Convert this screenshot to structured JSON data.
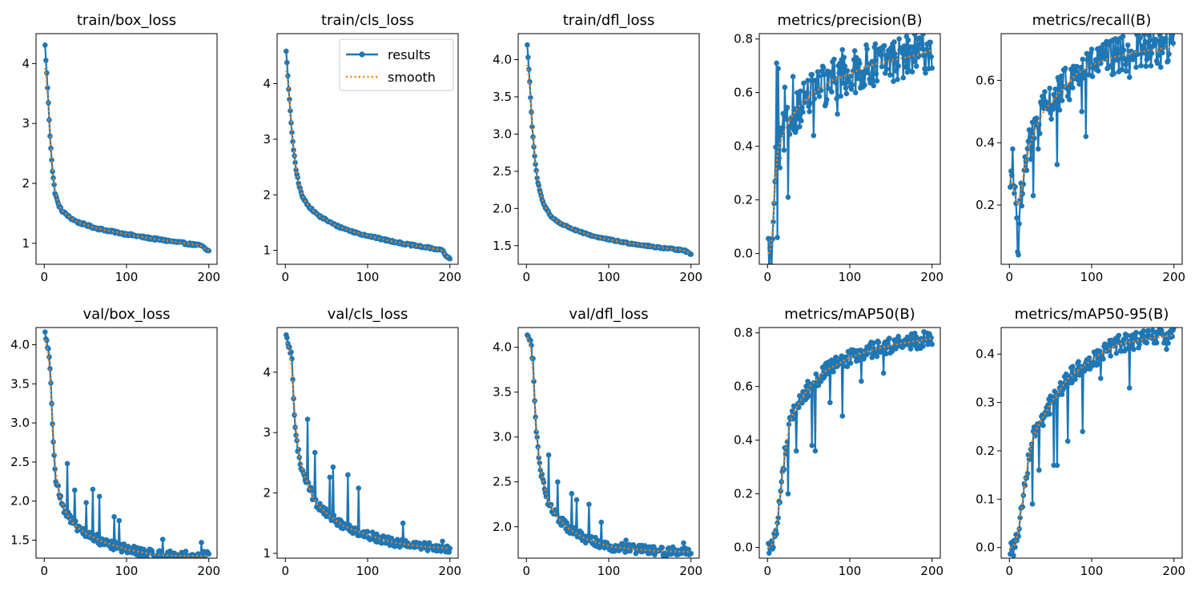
{
  "figure": {
    "colors": {
      "results": "#1f77b4",
      "smooth": "#ff7f0e",
      "axis": "#000000",
      "background": "#ffffff"
    }
  },
  "chart_data": [
    {
      "type": "line",
      "title": "train/box_loss",
      "xlim": [
        -10,
        210
      ],
      "ylim": [
        0.65,
        4.5
      ],
      "xticks": [
        {
          "v": 0,
          "label": "0"
        },
        {
          "v": 100,
          "label": "100"
        },
        {
          "v": 200,
          "label": "200"
        }
      ],
      "yticks": [
        {
          "v": 1,
          "label": "1"
        },
        {
          "v": 2,
          "label": "2"
        },
        {
          "v": 3,
          "label": "3"
        },
        {
          "v": 4,
          "label": "4"
        }
      ],
      "anchors": [
        [
          0,
          4.3
        ],
        [
          3,
          3.6
        ],
        [
          6,
          2.8
        ],
        [
          9,
          2.2
        ],
        [
          12,
          1.85
        ],
        [
          16,
          1.65
        ],
        [
          20,
          1.55
        ],
        [
          30,
          1.43
        ],
        [
          40,
          1.35
        ],
        [
          60,
          1.26
        ],
        [
          80,
          1.2
        ],
        [
          100,
          1.15
        ],
        [
          120,
          1.1
        ],
        [
          150,
          1.04
        ],
        [
          180,
          0.98
        ],
        [
          190,
          0.96
        ],
        [
          195,
          0.9
        ],
        [
          199,
          0.87
        ]
      ],
      "noise": 0.02,
      "spikes": [],
      "legend": null
    },
    {
      "type": "line",
      "title": "train/cls_loss",
      "xlim": [
        -10,
        210
      ],
      "ylim": [
        0.75,
        4.9
      ],
      "xticks": [
        {
          "v": 0,
          "label": "0"
        },
        {
          "v": 100,
          "label": "100"
        },
        {
          "v": 200,
          "label": "200"
        }
      ],
      "yticks": [
        {
          "v": 1,
          "label": "1"
        },
        {
          "v": 2,
          "label": "2"
        },
        {
          "v": 3,
          "label": "3"
        },
        {
          "v": 4,
          "label": "4"
        }
      ],
      "anchors": [
        [
          0,
          4.6
        ],
        [
          3,
          3.9
        ],
        [
          6,
          3.3
        ],
        [
          9,
          2.8
        ],
        [
          12,
          2.45
        ],
        [
          16,
          2.15
        ],
        [
          20,
          1.95
        ],
        [
          30,
          1.75
        ],
        [
          40,
          1.62
        ],
        [
          60,
          1.45
        ],
        [
          80,
          1.34
        ],
        [
          100,
          1.26
        ],
        [
          120,
          1.19
        ],
        [
          150,
          1.1
        ],
        [
          180,
          1.03
        ],
        [
          190,
          1.0
        ],
        [
          195,
          0.88
        ],
        [
          199,
          0.85
        ]
      ],
      "noise": 0.02,
      "spikes": [],
      "legend": {
        "position": "upper right",
        "entries": [
          {
            "label": "results",
            "style": "line-marker"
          },
          {
            "label": "smooth",
            "style": "dotted"
          }
        ]
      }
    },
    {
      "type": "line",
      "title": "train/dfl_loss",
      "xlim": [
        -10,
        210
      ],
      "ylim": [
        1.25,
        4.35
      ],
      "xticks": [
        {
          "v": 0,
          "label": "0"
        },
        {
          "v": 100,
          "label": "100"
        },
        {
          "v": 200,
          "label": "200"
        }
      ],
      "yticks": [
        {
          "v": 1.5,
          "label": "1.5"
        },
        {
          "v": 2.0,
          "label": "2.0"
        },
        {
          "v": 2.5,
          "label": "2.5"
        },
        {
          "v": 3.0,
          "label": "3.0"
        },
        {
          "v": 3.5,
          "label": "3.5"
        },
        {
          "v": 4.0,
          "label": "4.0"
        }
      ],
      "anchors": [
        [
          0,
          4.2
        ],
        [
          3,
          3.7
        ],
        [
          6,
          3.1
        ],
        [
          9,
          2.7
        ],
        [
          12,
          2.4
        ],
        [
          16,
          2.2
        ],
        [
          20,
          2.05
        ],
        [
          30,
          1.88
        ],
        [
          40,
          1.8
        ],
        [
          60,
          1.7
        ],
        [
          80,
          1.63
        ],
        [
          100,
          1.58
        ],
        [
          120,
          1.54
        ],
        [
          150,
          1.49
        ],
        [
          180,
          1.45
        ],
        [
          190,
          1.44
        ],
        [
          195,
          1.41
        ],
        [
          199,
          1.39
        ]
      ],
      "noise": 0.012,
      "spikes": [],
      "legend": null
    },
    {
      "type": "line",
      "title": "metrics/precision(B)",
      "xlim": [
        -10,
        210
      ],
      "ylim": [
        -0.04,
        0.82
      ],
      "xticks": [
        {
          "v": 0,
          "label": "0"
        },
        {
          "v": 100,
          "label": "100"
        },
        {
          "v": 200,
          "label": "200"
        }
      ],
      "yticks": [
        {
          "v": 0.0,
          "label": "0.0"
        },
        {
          "v": 0.2,
          "label": "0.2"
        },
        {
          "v": 0.4,
          "label": "0.4"
        },
        {
          "v": 0.6,
          "label": "0.6"
        },
        {
          "v": 0.8,
          "label": "0.8"
        }
      ],
      "anchors": [
        [
          0,
          0.0
        ],
        [
          5,
          0.0
        ],
        [
          8,
          0.3
        ],
        [
          10,
          0.38
        ],
        [
          15,
          0.42
        ],
        [
          20,
          0.46
        ],
        [
          30,
          0.52
        ],
        [
          40,
          0.56
        ],
        [
          60,
          0.61
        ],
        [
          80,
          0.65
        ],
        [
          100,
          0.67
        ],
        [
          120,
          0.7
        ],
        [
          150,
          0.72
        ],
        [
          180,
          0.74
        ],
        [
          200,
          0.76
        ]
      ],
      "noise": 0.08,
      "spikes": [
        [
          10,
          0.71
        ],
        [
          11,
          0.06
        ],
        [
          12,
          0.69
        ],
        [
          14,
          0.32
        ],
        [
          20,
          0.62
        ],
        [
          24,
          0.21
        ],
        [
          30,
          0.66
        ],
        [
          55,
          0.44
        ],
        [
          70,
          0.56
        ],
        [
          84,
          0.52
        ],
        [
          90,
          0.76
        ],
        [
          106,
          0.6
        ],
        [
          160,
          0.76
        ]
      ],
      "legend": null
    },
    {
      "type": "line",
      "title": "metrics/recall(B)",
      "xlim": [
        -10,
        210
      ],
      "ylim": [
        0.01,
        0.75
      ],
      "xticks": [
        {
          "v": 0,
          "label": "0"
        },
        {
          "v": 100,
          "label": "100"
        },
        {
          "v": 200,
          "label": "200"
        }
      ],
      "yticks": [
        {
          "v": 0.2,
          "label": "0.2"
        },
        {
          "v": 0.4,
          "label": "0.4"
        },
        {
          "v": 0.6,
          "label": "0.6"
        }
      ],
      "anchors": [
        [
          0,
          0.29
        ],
        [
          4,
          0.28
        ],
        [
          8,
          0.18
        ],
        [
          12,
          0.2
        ],
        [
          16,
          0.3
        ],
        [
          20,
          0.36
        ],
        [
          30,
          0.44
        ],
        [
          40,
          0.5
        ],
        [
          60,
          0.56
        ],
        [
          80,
          0.62
        ],
        [
          100,
          0.65
        ],
        [
          120,
          0.67
        ],
        [
          150,
          0.69
        ],
        [
          180,
          0.7
        ],
        [
          200,
          0.71
        ]
      ],
      "noise": 0.06,
      "spikes": [
        [
          3,
          0.38
        ],
        [
          9,
          0.05
        ],
        [
          10,
          0.04
        ],
        [
          13,
          0.27
        ],
        [
          28,
          0.23
        ],
        [
          34,
          0.38
        ],
        [
          57,
          0.33
        ],
        [
          87,
          0.5
        ],
        [
          92,
          0.42
        ],
        [
          145,
          0.61
        ],
        [
          170,
          0.73
        ]
      ],
      "legend": null
    },
    {
      "type": "line",
      "title": "val/box_loss",
      "xlim": [
        -10,
        210
      ],
      "ylim": [
        1.27,
        4.22
      ],
      "xticks": [
        {
          "v": 0,
          "label": "0"
        },
        {
          "v": 100,
          "label": "100"
        },
        {
          "v": 200,
          "label": "200"
        }
      ],
      "yticks": [
        {
          "v": 1.5,
          "label": "1.5"
        },
        {
          "v": 2.0,
          "label": "2.0"
        },
        {
          "v": 2.5,
          "label": "2.5"
        },
        {
          "v": 3.0,
          "label": "3.0"
        },
        {
          "v": 3.5,
          "label": "3.5"
        },
        {
          "v": 4.0,
          "label": "4.0"
        }
      ],
      "anchors": [
        [
          0,
          4.15
        ],
        [
          4,
          3.95
        ],
        [
          7,
          3.5
        ],
        [
          10,
          2.8
        ],
        [
          13,
          2.3
        ],
        [
          18,
          2.05
        ],
        [
          25,
          1.85
        ],
        [
          35,
          1.7
        ],
        [
          50,
          1.58
        ],
        [
          70,
          1.48
        ],
        [
          100,
          1.38
        ],
        [
          130,
          1.32
        ],
        [
          160,
          1.3
        ],
        [
          200,
          1.3
        ]
      ],
      "noise": 0.06,
      "spikes": [
        [
          27,
          2.48
        ],
        [
          36,
          2.14
        ],
        [
          50,
          1.98
        ],
        [
          58,
          2.15
        ],
        [
          66,
          2.06
        ],
        [
          84,
          1.8
        ],
        [
          90,
          1.75
        ],
        [
          143,
          1.51
        ],
        [
          190,
          1.47
        ]
      ],
      "legend": null
    },
    {
      "type": "line",
      "title": "val/cls_loss",
      "xlim": [
        -10,
        210
      ],
      "ylim": [
        0.92,
        4.74
      ],
      "xticks": [
        {
          "v": 0,
          "label": "0"
        },
        {
          "v": 100,
          "label": "100"
        },
        {
          "v": 200,
          "label": "200"
        }
      ],
      "yticks": [
        {
          "v": 1,
          "label": "1"
        },
        {
          "v": 2,
          "label": "2"
        },
        {
          "v": 3,
          "label": "3"
        },
        {
          "v": 4,
          "label": "4"
        }
      ],
      "anchors": [
        [
          0,
          4.55
        ],
        [
          4,
          4.4
        ],
        [
          7,
          4.2
        ],
        [
          10,
          3.3
        ],
        [
          13,
          2.8
        ],
        [
          18,
          2.45
        ],
        [
          25,
          2.2
        ],
        [
          35,
          1.85
        ],
        [
          50,
          1.65
        ],
        [
          70,
          1.45
        ],
        [
          100,
          1.3
        ],
        [
          130,
          1.18
        ],
        [
          160,
          1.12
        ],
        [
          200,
          1.08
        ]
      ],
      "noise": 0.07,
      "spikes": [
        [
          26,
          3.22
        ],
        [
          35,
          2.67
        ],
        [
          53,
          2.26
        ],
        [
          57,
          2.43
        ],
        [
          75,
          2.3
        ],
        [
          88,
          2.08
        ],
        [
          142,
          1.5
        ],
        [
          190,
          1.2
        ]
      ],
      "legend": null
    },
    {
      "type": "line",
      "title": "val/dfl_loss",
      "xlim": [
        -10,
        210
      ],
      "ylim": [
        1.65,
        4.22
      ],
      "xticks": [
        {
          "v": 0,
          "label": "0"
        },
        {
          "v": 100,
          "label": "100"
        },
        {
          "v": 200,
          "label": "200"
        }
      ],
      "yticks": [
        {
          "v": 2.0,
          "label": "2.0"
        },
        {
          "v": 2.5,
          "label": "2.5"
        },
        {
          "v": 3.0,
          "label": "3.0"
        },
        {
          "v": 3.5,
          "label": "3.5"
        },
        {
          "v": 4.0,
          "label": "4.0"
        }
      ],
      "anchors": [
        [
          0,
          4.15
        ],
        [
          4,
          4.05
        ],
        [
          7,
          3.85
        ],
        [
          10,
          3.2
        ],
        [
          13,
          2.85
        ],
        [
          18,
          2.55
        ],
        [
          25,
          2.3
        ],
        [
          35,
          2.12
        ],
        [
          50,
          1.98
        ],
        [
          70,
          1.87
        ],
        [
          100,
          1.78
        ],
        [
          130,
          1.75
        ],
        [
          160,
          1.73
        ],
        [
          200,
          1.72
        ]
      ],
      "noise": 0.05,
      "spikes": [
        [
          26,
          2.8
        ],
        [
          37,
          2.5
        ],
        [
          54,
          2.37
        ],
        [
          60,
          2.3
        ],
        [
          75,
          2.25
        ],
        [
          90,
          2.05
        ],
        [
          120,
          1.85
        ],
        [
          190,
          1.82
        ]
      ],
      "legend": null
    },
    {
      "type": "line",
      "title": "metrics/mAP50(B)",
      "xlim": [
        -10,
        210
      ],
      "ylim": [
        -0.04,
        0.82
      ],
      "xticks": [
        {
          "v": 0,
          "label": "0"
        },
        {
          "v": 100,
          "label": "100"
        },
        {
          "v": 200,
          "label": "200"
        }
      ],
      "yticks": [
        {
          "v": 0.0,
          "label": "0.0"
        },
        {
          "v": 0.2,
          "label": "0.2"
        },
        {
          "v": 0.4,
          "label": "0.4"
        },
        {
          "v": 0.6,
          "label": "0.6"
        },
        {
          "v": 0.8,
          "label": "0.8"
        }
      ],
      "anchors": [
        [
          0,
          0.0
        ],
        [
          5,
          0.0
        ],
        [
          10,
          0.08
        ],
        [
          15,
          0.2
        ],
        [
          20,
          0.35
        ],
        [
          25,
          0.45
        ],
        [
          30,
          0.5
        ],
        [
          40,
          0.55
        ],
        [
          50,
          0.6
        ],
        [
          70,
          0.66
        ],
        [
          100,
          0.71
        ],
        [
          130,
          0.74
        ],
        [
          160,
          0.76
        ],
        [
          200,
          0.78
        ]
      ],
      "noise": 0.03,
      "spikes": [
        [
          24,
          0.2
        ],
        [
          34,
          0.36
        ],
        [
          53,
          0.38
        ],
        [
          57,
          0.36
        ],
        [
          75,
          0.54
        ],
        [
          90,
          0.49
        ],
        [
          113,
          0.62
        ],
        [
          140,
          0.65
        ],
        [
          188,
          0.75
        ]
      ],
      "legend": null
    },
    {
      "type": "line",
      "title": "metrics/mAP50-95(B)",
      "xlim": [
        -10,
        210
      ],
      "ylim": [
        -0.022,
        0.455
      ],
      "xticks": [
        {
          "v": 0,
          "label": "0"
        },
        {
          "v": 100,
          "label": "100"
        },
        {
          "v": 200,
          "label": "200"
        }
      ],
      "yticks": [
        {
          "v": 0.0,
          "label": "0.0"
        },
        {
          "v": 0.1,
          "label": "0.1"
        },
        {
          "v": 0.2,
          "label": "0.2"
        },
        {
          "v": 0.3,
          "label": "0.3"
        },
        {
          "v": 0.4,
          "label": "0.4"
        }
      ],
      "anchors": [
        [
          0,
          0.0
        ],
        [
          5,
          0.0
        ],
        [
          10,
          0.03
        ],
        [
          15,
          0.1
        ],
        [
          20,
          0.16
        ],
        [
          25,
          0.21
        ],
        [
          30,
          0.24
        ],
        [
          40,
          0.27
        ],
        [
          50,
          0.3
        ],
        [
          70,
          0.35
        ],
        [
          100,
          0.39
        ],
        [
          130,
          0.42
        ],
        [
          160,
          0.43
        ],
        [
          200,
          0.44
        ]
      ],
      "noise": 0.018,
      "spikes": [
        [
          27,
          0.09
        ],
        [
          35,
          0.16
        ],
        [
          53,
          0.17
        ],
        [
          57,
          0.17
        ],
        [
          70,
          0.22
        ],
        [
          88,
          0.24
        ],
        [
          110,
          0.35
        ],
        [
          145,
          0.33
        ],
        [
          190,
          0.41
        ]
      ],
      "legend": null
    }
  ]
}
